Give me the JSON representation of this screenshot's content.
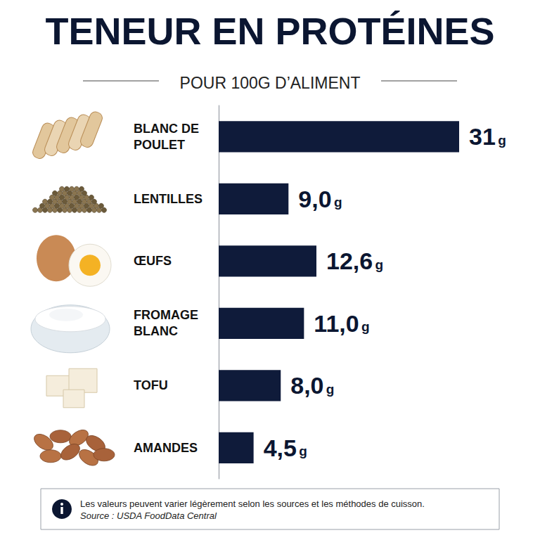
{
  "chart_data": {
    "type": "bar",
    "title": "TENEUR EN PROTÉINES",
    "subtitle": "POUR 100G D’ALIMENT",
    "categories": [
      "BLANC DE POULET",
      "LENTILLES",
      "ŒUFS",
      "FROMAGE BLANC",
      "TOFU",
      "AMANDES"
    ],
    "values": [
      31,
      9.0,
      12.6,
      11.0,
      8.0,
      4.5
    ],
    "value_labels": [
      "31 g",
      "9,0 g",
      "12,6 g",
      "11,0 g",
      "8,0 g",
      "4,5 g"
    ],
    "color": "#0f1b3a",
    "orientation": "horizontal",
    "xlim": [
      0,
      31
    ],
    "data_labels": true,
    "tick_labels": "y",
    "grid": false,
    "annotations": [
      "Les valeurs peuvent varier légèrement selon les sources et les méthodes de cuisson.",
      "Source : USDA FoodData Central"
    ]
  }
}
